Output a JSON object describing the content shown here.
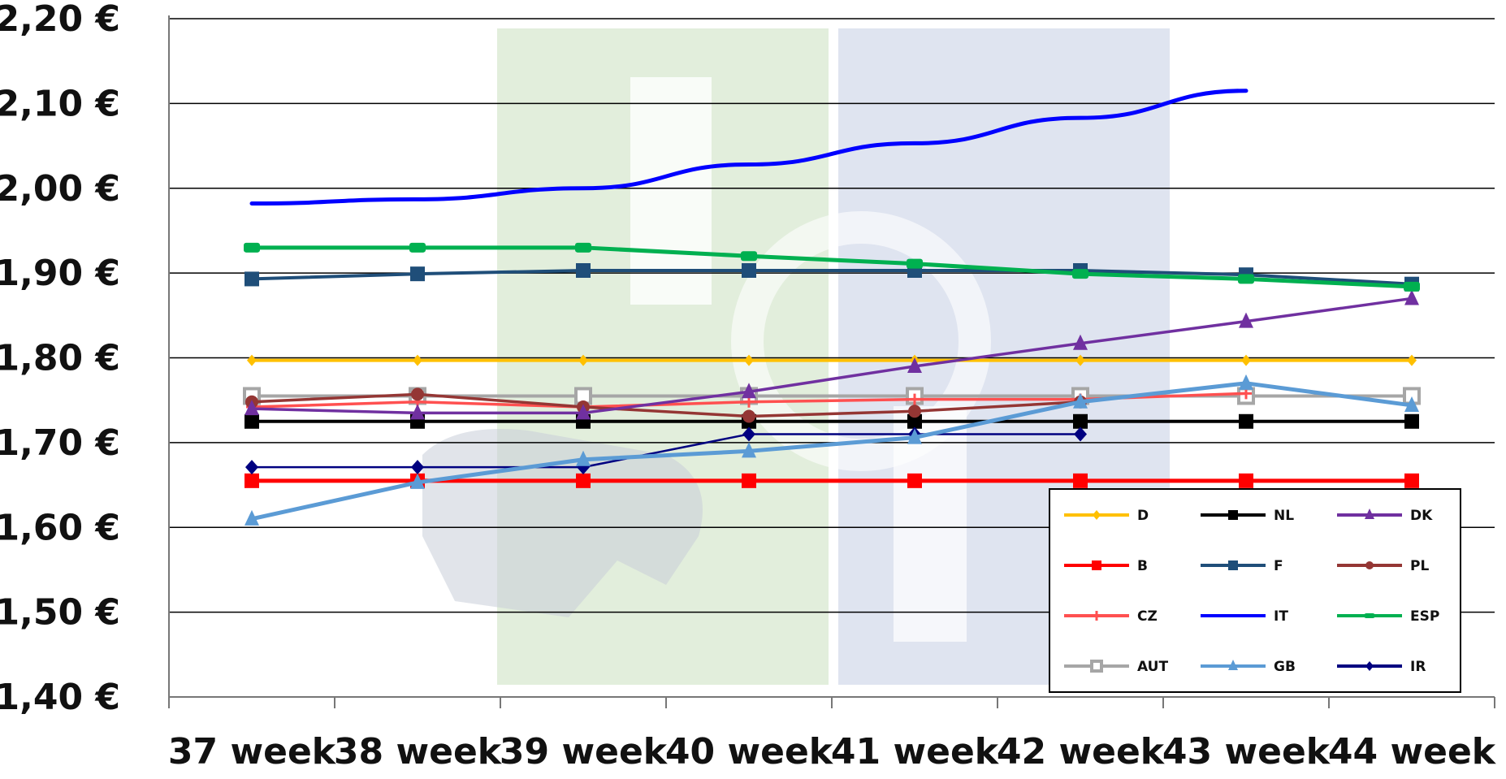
{
  "chart_data": {
    "type": "line",
    "title": "",
    "xlabel": "",
    "ylabel": "",
    "categories": [
      "37 week",
      "38 week",
      "39 week",
      "40 week",
      "41 week",
      "42 week",
      "43 week",
      "44 week"
    ],
    "yticks": [
      "1,40 €",
      "1,50 €",
      "1,60 €",
      "1,70 €",
      "1,80 €",
      "1,90 €",
      "2,00 €",
      "2,10 €",
      "2,20 €"
    ],
    "ylim": [
      1.4,
      2.2
    ],
    "grid": true,
    "legend_position": "bottom-right",
    "series": [
      {
        "name": "D",
        "color": "#FFC000",
        "marker": "diamond",
        "values": [
          1.797,
          1.797,
          1.797,
          1.797,
          1.797,
          1.797,
          1.797,
          1.797
        ]
      },
      {
        "name": "NL",
        "color": "#000000",
        "marker": "square",
        "values": [
          1.725,
          1.725,
          1.725,
          1.725,
          1.725,
          1.725,
          1.725,
          1.725
        ]
      },
      {
        "name": "DK",
        "color": "#7030A0",
        "marker": "triangle",
        "values": [
          1.74,
          1.735,
          1.735,
          1.76,
          1.79,
          1.817,
          1.843,
          1.87
        ]
      },
      {
        "name": "B",
        "color": "#FF0000",
        "marker": "square",
        "values": [
          1.655,
          1.655,
          1.655,
          1.655,
          1.655,
          1.655,
          1.655,
          1.655
        ]
      },
      {
        "name": "F",
        "color": "#1F4E79",
        "marker": "square",
        "values": [
          1.893,
          1.899,
          1.903,
          1.903,
          1.903,
          1.903,
          1.898,
          1.887
        ]
      },
      {
        "name": "PL",
        "color": "#943634",
        "marker": "circle",
        "values": [
          1.748,
          1.757,
          1.742,
          1.731,
          1.737,
          1.748,
          null,
          null
        ]
      },
      {
        "name": "CZ",
        "color": "#FF5050",
        "marker": "plus",
        "values": [
          1.742,
          1.748,
          1.742,
          1.748,
          1.751,
          1.751,
          1.758,
          null
        ]
      },
      {
        "name": "IT",
        "color": "#0000FF",
        "marker": "none",
        "values": [
          1.982,
          1.987,
          2.0,
          2.028,
          2.053,
          2.083,
          2.115,
          null
        ]
      },
      {
        "name": "ESP",
        "color": "#00B050",
        "marker": "rect",
        "values": [
          1.93,
          1.93,
          1.93,
          1.92,
          1.911,
          1.899,
          1.893,
          1.884
        ]
      },
      {
        "name": "AUT",
        "color": "#A6A6A6",
        "marker": "hollow-square",
        "values": [
          1.755,
          1.755,
          1.755,
          1.755,
          1.755,
          1.755,
          1.755,
          1.755
        ]
      },
      {
        "name": "GB",
        "color": "#5B9BD5",
        "marker": "triangle",
        "values": [
          1.61,
          1.653,
          1.68,
          1.69,
          1.706,
          1.748,
          1.77,
          1.744
        ]
      },
      {
        "name": "IR",
        "color": "#000080",
        "marker": "diamond",
        "values": [
          1.671,
          1.671,
          1.671,
          1.71,
          1.71,
          1.71,
          null,
          null
        ]
      }
    ]
  },
  "colors": {
    "background": "#ffffff",
    "plot_background": "#ffffff",
    "gridline": "#000000",
    "watermark_green": "#E2EEDC",
    "watermark_blue": "#DFE4F0"
  }
}
